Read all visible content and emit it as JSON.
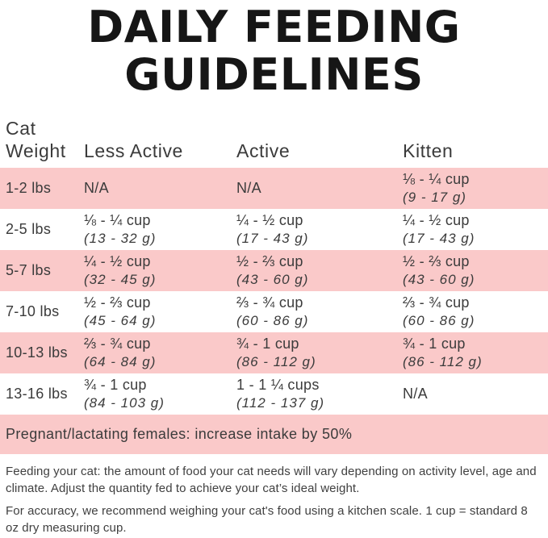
{
  "title": {
    "line1": "DAILY FEEDING",
    "line2": "GUIDELINES"
  },
  "colors": {
    "row_highlight_pink": "#fac9c9",
    "title_text": "#161616",
    "body_text": "#3b3b3b"
  },
  "table": {
    "header": {
      "col1_line1": "Cat",
      "col1_line2": "Weight",
      "col2": "Less Active",
      "col3": "Active",
      "col4": "Kitten"
    },
    "rows": [
      {
        "weight": "1-2 lbs",
        "less_active": {
          "main": "N/A"
        },
        "active": {
          "main": "N/A"
        },
        "kitten": {
          "main": "⅛ - ¼ cup",
          "grams": "(9 - 17 g)"
        }
      },
      {
        "weight": "2-5 lbs",
        "less_active": {
          "main": "⅛ - ¼ cup",
          "grams": "(13 - 32 g)"
        },
        "active": {
          "main": "¼ - ½ cup",
          "grams": "(17 - 43 g)"
        },
        "kitten": {
          "main": "¼ - ½ cup",
          "grams": "(17 - 43 g)"
        }
      },
      {
        "weight": "5-7 lbs",
        "less_active": {
          "main": "¼ - ½ cup",
          "grams": "(32 - 45 g)"
        },
        "active": {
          "main": "½ - ⅔ cup",
          "grams": "(43 - 60 g)"
        },
        "kitten": {
          "main": "½ - ⅔ cup",
          "grams": "(43 - 60 g)"
        }
      },
      {
        "weight": "7-10 lbs",
        "less_active": {
          "main": "½ - ⅔ cup",
          "grams": "(45 - 64 g)"
        },
        "active": {
          "main": "⅔ - ¾ cup",
          "grams": "(60 - 86 g)"
        },
        "kitten": {
          "main": "⅔ - ¾ cup",
          "grams": "(60 - 86 g)"
        }
      },
      {
        "weight": "10-13 lbs",
        "less_active": {
          "main": "⅔ - ¾ cup",
          "grams": "(64 - 84 g)"
        },
        "active": {
          "main": "¾ - 1 cup",
          "grams": "(86 - 112 g)"
        },
        "kitten": {
          "main": "¾ - 1 cup",
          "grams": "(86 - 112 g)"
        }
      },
      {
        "weight": "13-16 lbs",
        "less_active": {
          "main": "¾ - 1 cup",
          "grams": "(84 - 103 g)"
        },
        "active": {
          "main": "1 - 1 ¼ cups",
          "grams": "(112 - 137 g)"
        },
        "kitten": {
          "main": "N/A"
        }
      }
    ]
  },
  "banner": {
    "text": "Pregnant/lactating females: increase intake by 50%"
  },
  "notes": {
    "feeding": "Feeding your cat: the amount of food your cat needs will vary depending on activity level, age and climate. Adjust the quantity fed to achieve your cat’s ideal weight.",
    "accuracy": "For accuracy, we recommend weighing your cat's food using a kitchen scale. 1 cup = standard 8 oz dry measuring cup."
  }
}
